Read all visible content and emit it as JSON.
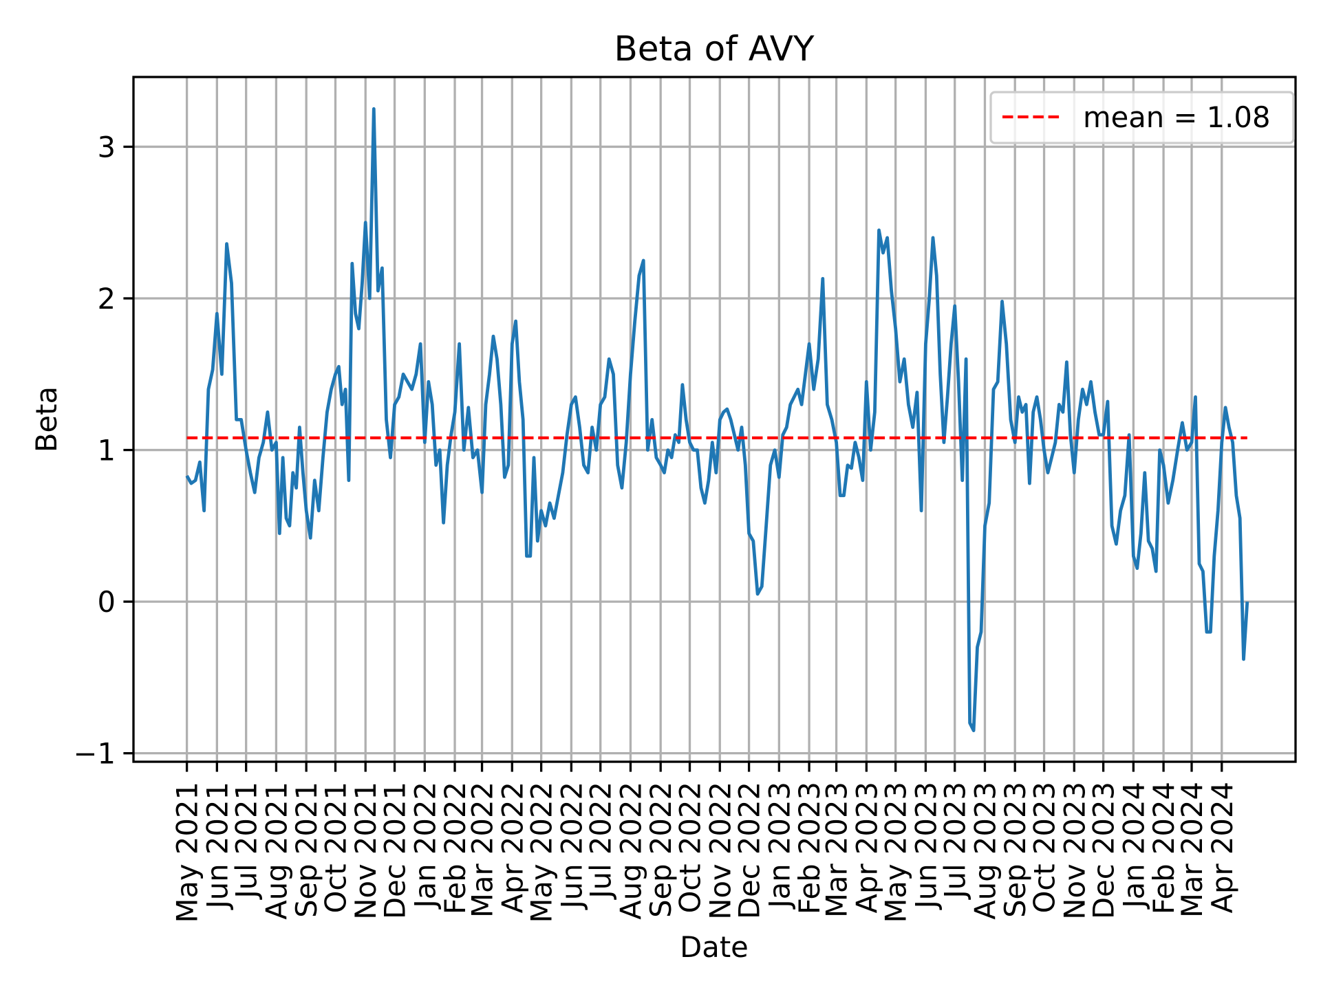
{
  "chart_data": {
    "type": "line",
    "title": "Beta of AVY",
    "xlabel": "Date",
    "ylabel": "Beta",
    "ylim": [
      -1.056,
      3.46
    ],
    "xlim": [
      "2021-03-07",
      "2024-06-16"
    ],
    "grid": true,
    "legend_placement": "top-right",
    "yticks": [
      -1,
      0,
      1,
      2,
      3
    ],
    "ytick_labels": [
      "−1",
      "0",
      "1",
      "2",
      "3"
    ],
    "xticks": [
      "2021-05",
      "2021-06",
      "2021-07",
      "2021-08",
      "2021-09",
      "2021-10",
      "2021-11",
      "2021-12",
      "2022-01",
      "2022-02",
      "2022-03",
      "2022-04",
      "2022-05",
      "2022-06",
      "2022-07",
      "2022-08",
      "2022-09",
      "2022-10",
      "2022-11",
      "2022-12",
      "2023-01",
      "2023-02",
      "2023-03",
      "2023-04",
      "2023-05",
      "2023-06",
      "2023-07",
      "2023-08",
      "2023-09",
      "2023-10",
      "2023-11",
      "2023-12",
      "2024-01",
      "2024-02",
      "2024-03",
      "2024-04"
    ],
    "xtick_labels": [
      "May 2021",
      "Jun 2021",
      "Jul 2021",
      "Aug 2021",
      "Sep 2021",
      "Oct 2021",
      "Nov 2021",
      "Dec 2021",
      "Jan 2022",
      "Feb 2022",
      "Mar 2022",
      "Apr 2022",
      "May 2022",
      "Jun 2022",
      "Jul 2022",
      "Aug 2022",
      "Sep 2022",
      "Oct 2022",
      "Nov 2022",
      "Dec 2022",
      "Jan 2023",
      "Feb 2023",
      "Mar 2023",
      "Apr 2023",
      "May 2023",
      "Jun 2023",
      "Jul 2023",
      "Aug 2023",
      "Sep 2023",
      "Oct 2023",
      "Nov 2023",
      "Dec 2023",
      "Jan 2024",
      "Feb 2024",
      "Mar 2024",
      "Apr 2024"
    ],
    "series": [
      {
        "color": "#1f77b4",
        "data": [
          {
            "month": "2021-05",
            "values": [
              0.83,
              0.78,
              0.8,
              0.92,
              0.6,
              1.4,
              1.53
            ]
          },
          {
            "month": "2021-06",
            "values": [
              1.9,
              1.5,
              2.36,
              2.1,
              1.2,
              1.2
            ]
          },
          {
            "month": "2021-07",
            "values": [
              1.0,
              0.85,
              0.72,
              0.95,
              1.05,
              1.25,
              1.0
            ]
          },
          {
            "month": "2021-08",
            "values": [
              1.05,
              0.45,
              0.95,
              0.55,
              0.5,
              0.85,
              0.75,
              1.15,
              0.85
            ]
          },
          {
            "month": "2021-09",
            "values": [
              0.6,
              0.42,
              0.8,
              0.6,
              0.95,
              1.25,
              1.4
            ]
          },
          {
            "month": "2021-10",
            "values": [
              1.5,
              1.55,
              1.3,
              1.4,
              0.8,
              2.23,
              1.9,
              1.8,
              2.1
            ]
          },
          {
            "month": "2021-11",
            "values": [
              2.5,
              2.0,
              3.25,
              2.05,
              2.2,
              1.2,
              0.95
            ]
          },
          {
            "month": "2021-12",
            "values": [
              1.3,
              1.35,
              1.5,
              1.45,
              1.4,
              1.5,
              1.7
            ]
          },
          {
            "month": "2022-01",
            "values": [
              1.05,
              1.45,
              1.3,
              0.9,
              1.0,
              0.52,
              0.9,
              1.1
            ]
          },
          {
            "month": "2022-02",
            "values": [
              1.25,
              1.7,
              1.0,
              1.28,
              0.95,
              1.0
            ]
          },
          {
            "month": "2022-03",
            "values": [
              0.72,
              1.3,
              1.5,
              1.75,
              1.6,
              1.3,
              0.82,
              0.9
            ]
          },
          {
            "month": "2022-04",
            "values": [
              1.7,
              1.85,
              1.45,
              1.2,
              0.3,
              0.3,
              0.95,
              0.4
            ]
          },
          {
            "month": "2022-05",
            "values": [
              0.6,
              0.5,
              0.65,
              0.55,
              0.7,
              0.85,
              1.1
            ]
          },
          {
            "month": "2022-06",
            "values": [
              1.3,
              1.35,
              1.15,
              0.9,
              0.85,
              1.15,
              1.0
            ]
          },
          {
            "month": "2022-07",
            "values": [
              1.3,
              1.35,
              1.6,
              1.5,
              0.9,
              0.75,
              1.05
            ]
          },
          {
            "month": "2022-08",
            "values": [
              1.5,
              1.85,
              2.15,
              2.25,
              1.0,
              1.2,
              0.95
            ]
          },
          {
            "month": "2022-09",
            "values": [
              0.9,
              0.85,
              1.0,
              0.95,
              1.1,
              1.05,
              1.43,
              1.2
            ]
          },
          {
            "month": "2022-10",
            "values": [
              1.05,
              1.0,
              1.0,
              0.75,
              0.65,
              0.8,
              1.05,
              0.85
            ]
          },
          {
            "month": "2022-11",
            "values": [
              1.2,
              1.25,
              1.27,
              1.2,
              1.1,
              1.0,
              1.15,
              0.9
            ]
          },
          {
            "month": "2022-12",
            "values": [
              0.45,
              0.4,
              0.05,
              0.1,
              0.5,
              0.9,
              1.0
            ]
          },
          {
            "month": "2023-01",
            "values": [
              0.82,
              1.1,
              1.15,
              1.3,
              1.35,
              1.4,
              1.3,
              1.5
            ]
          },
          {
            "month": "2023-02",
            "values": [
              1.7,
              1.4,
              1.6,
              2.13,
              1.3,
              1.2
            ]
          },
          {
            "month": "2023-03",
            "values": [
              1.05,
              0.7,
              0.7,
              0.9,
              0.88,
              1.05,
              0.95,
              0.8
            ]
          },
          {
            "month": "2023-04",
            "values": [
              1.45,
              1.0,
              1.25,
              2.45,
              2.3,
              2.4,
              2.05
            ]
          },
          {
            "month": "2023-05",
            "values": [
              1.8,
              1.45,
              1.6,
              1.3,
              1.15,
              1.38,
              0.6
            ]
          },
          {
            "month": "2023-06",
            "values": [
              1.7,
              2.0,
              2.4,
              2.15,
              1.5,
              1.05,
              1.35,
              1.7
            ]
          },
          {
            "month": "2023-07",
            "values": [
              1.95,
              1.45,
              0.8,
              1.6,
              -0.8,
              -0.85,
              -0.3,
              -0.2
            ]
          },
          {
            "month": "2023-08",
            "values": [
              0.5,
              0.65,
              1.4,
              1.45,
              1.98,
              1.7,
              1.2
            ]
          },
          {
            "month": "2023-09",
            "values": [
              1.05,
              1.35,
              1.25,
              1.3,
              0.78,
              1.25,
              1.35,
              1.2
            ]
          },
          {
            "month": "2023-10",
            "values": [
              1.0,
              0.85,
              0.95,
              1.05,
              1.3,
              1.25,
              1.58,
              1.1
            ]
          },
          {
            "month": "2023-11",
            "values": [
              0.85,
              1.2,
              1.4,
              1.3,
              1.45,
              1.25,
              1.1
            ]
          },
          {
            "month": "2023-12",
            "values": [
              1.1,
              1.32,
              0.5,
              0.38,
              0.6,
              0.7,
              1.1
            ]
          },
          {
            "month": "2024-01",
            "values": [
              0.3,
              0.22,
              0.45,
              0.85,
              0.4,
              0.35,
              0.2,
              1.0
            ]
          },
          {
            "month": "2024-02",
            "values": [
              0.9,
              0.65,
              0.8,
              1.0,
              1.18,
              1.0
            ]
          },
          {
            "month": "2024-03",
            "values": [
              1.05,
              1.35,
              0.25,
              0.2,
              -0.2,
              -0.2,
              0.3,
              0.6
            ]
          },
          {
            "month": "2024-04",
            "values": [
              1.05,
              1.28,
              1.15,
              1.05,
              0.7,
              0.55,
              -0.38,
              0.0
            ]
          }
        ]
      }
    ],
    "mean_line": {
      "value": 1.08,
      "label": "mean = 1.08",
      "color": "#ff0000",
      "style": "dashed"
    },
    "grid_color": "#b0b0b0"
  }
}
